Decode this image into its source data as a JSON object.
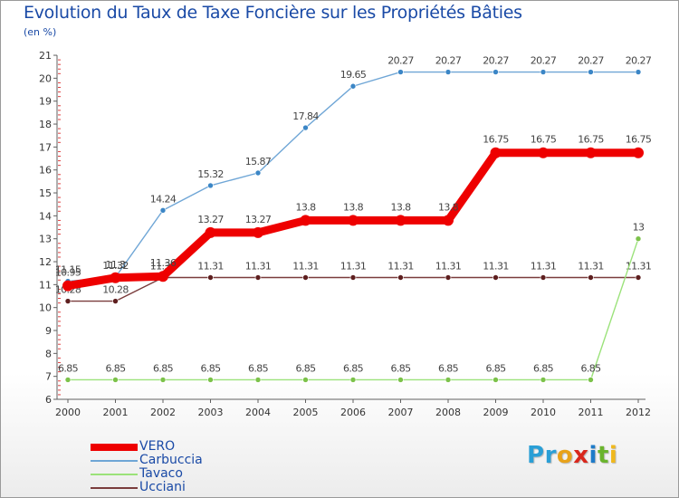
{
  "header": {
    "title": "Evolution du Taux de Taxe Foncière sur les Propriétés Bâties",
    "subtitle": "(en %)"
  },
  "logo": {
    "text": "Proxiti",
    "letters": [
      {
        "ch": "P",
        "color": "#2a9fd6"
      },
      {
        "ch": "r",
        "color": "#2a9fd6"
      },
      {
        "ch": "o",
        "color": "#e8a21a"
      },
      {
        "ch": "x",
        "color": "#d9271c"
      },
      {
        "ch": "i",
        "color": "#1e7bc9"
      },
      {
        "ch": "t",
        "color": "#6ab42d"
      },
      {
        "ch": "i",
        "color": "#f0b81c"
      }
    ]
  },
  "chart_data": {
    "type": "line",
    "title": "Evolution du Taux de Taxe Foncière sur les Propriétés Bâties",
    "ylabel": "(en %)",
    "xlabel": "",
    "ylim": [
      6,
      21
    ],
    "grid": false,
    "legend_position": "bottom-left",
    "categories": [
      "2000",
      "2001",
      "2002",
      "2003",
      "2004",
      "2005",
      "2006",
      "2007",
      "2008",
      "2009",
      "2010",
      "2011",
      "2012"
    ],
    "y_ticks": [
      6,
      7,
      8,
      9,
      10,
      11,
      12,
      13,
      14,
      15,
      16,
      17,
      18,
      19,
      20,
      21
    ],
    "series": [
      {
        "name": "Ucciani",
        "color": "#7a3c3c",
        "marker_color": "#5e1f1f",
        "values": [
          10.28,
          10.28,
          11.31,
          11.31,
          11.31,
          11.31,
          11.31,
          11.31,
          11.31,
          11.31,
          11.31,
          11.31,
          11.31
        ],
        "labels": [
          "10.28",
          "10.28",
          "11.31",
          "11.31",
          "11.31",
          "11.31",
          "11.31",
          "11.31",
          "11.31",
          "11.31",
          "11.31",
          "11.31",
          "11.31"
        ]
      },
      {
        "name": "Tavaco",
        "color": "#9be27a",
        "marker_color": "#7cc24a",
        "values": [
          6.85,
          6.85,
          6.85,
          6.85,
          6.85,
          6.85,
          6.85,
          6.85,
          6.85,
          6.85,
          6.85,
          6.85,
          13
        ],
        "labels": [
          "6.85",
          "6.85",
          "6.85",
          "6.85",
          "6.85",
          "6.85",
          "6.85",
          "6.85",
          "6.85",
          "6.85",
          "6.85",
          "6.85",
          "13"
        ]
      },
      {
        "name": "Carbuccia",
        "color": "#6fa6d6",
        "marker_color": "#3b86c6",
        "values": [
          11.15,
          11.32,
          14.24,
          15.32,
          15.87,
          17.84,
          19.65,
          20.27,
          20.27,
          20.27,
          20.27,
          20.27,
          20.27
        ],
        "labels": [
          "11.15",
          "11.32",
          "14.24",
          "15.32",
          "15.87",
          "17.84",
          "19.65",
          "20.27",
          "20.27",
          "20.27",
          "20.27",
          "20.27",
          "20.27"
        ]
      },
      {
        "name": "VERO",
        "color": "#ee0000",
        "marker_color": "#ee0000",
        "values": [
          10.95,
          11.3,
          11.36,
          13.27,
          13.27,
          13.8,
          13.8,
          13.8,
          13.8,
          16.75,
          16.75,
          16.75,
          16.75
        ],
        "labels": [
          "10.95",
          "11.3",
          "11.36",
          "13.27",
          "13.27",
          "13.8",
          "13.8",
          "13.8",
          "13.8",
          "16.75",
          "16.75",
          "16.75",
          "16.75"
        ]
      }
    ],
    "legend": [
      "VERO",
      "Carbuccia",
      "Tavaco",
      "Ucciani"
    ]
  },
  "legend_colors": {
    "VERO": "#ee0000",
    "Carbuccia": "#6fa6d6",
    "Tavaco": "#9be27a",
    "Ucciani": "#7a3c3c"
  }
}
